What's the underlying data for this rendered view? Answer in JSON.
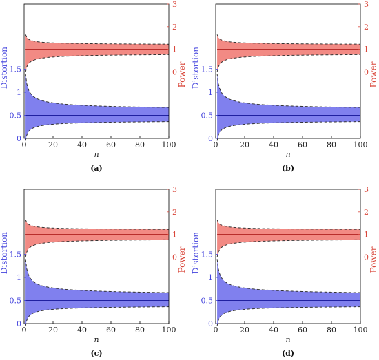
{
  "figure": {
    "colors": {
      "distortion": "#4444dd",
      "distortion_fill": "#8080ee",
      "power": "#d9473b",
      "power_fill": "#f28a84",
      "axis": "#000000",
      "dashed": "#333333"
    }
  },
  "chart_data": [
    {
      "type": "area",
      "panel_label": "(a)",
      "xlabel": "n",
      "ylabel_left": "Distortion",
      "ylabel_right": "Power",
      "x_ticks": [
        0,
        20,
        40,
        60,
        80,
        100
      ],
      "left_ticks": [
        "0",
        "0.5",
        "1",
        "1.5"
      ],
      "right_ticks": [
        "0",
        "1",
        "2",
        "3"
      ],
      "xlim": [
        0,
        100
      ],
      "distortion": {
        "mean": 0.5,
        "upper_start": 1.4,
        "lower_start": -0.05,
        "upper_end": 0.59,
        "lower_end": 0.41
      },
      "power": {
        "mean": 1.0,
        "upper_start": 1.65,
        "lower_start": 0.0,
        "upper_end": 1.18,
        "lower_end": 0.85
      }
    },
    {
      "type": "area",
      "panel_label": "(b)",
      "xlabel": "n",
      "ylabel_left": "Distortion",
      "ylabel_right": "Power",
      "x_ticks": [
        0,
        20,
        40,
        60,
        80,
        100
      ],
      "left_ticks": [
        "0",
        "0.5",
        "1",
        "1.5"
      ],
      "right_ticks": [
        "0",
        "1",
        "2",
        "3"
      ],
      "xlim": [
        0,
        100
      ],
      "distortion": {
        "mean": 0.5,
        "upper_start": 1.4,
        "lower_start": -0.05,
        "upper_end": 0.59,
        "lower_end": 0.41
      },
      "power": {
        "mean": 1.0,
        "upper_start": 1.65,
        "lower_start": 0.0,
        "upper_end": 1.18,
        "lower_end": 0.85
      }
    },
    {
      "type": "area",
      "panel_label": "(c)",
      "xlabel": "n",
      "ylabel_left": "Distortion",
      "ylabel_right": "Power",
      "x_ticks": [
        0,
        20,
        40,
        60,
        80,
        100
      ],
      "left_ticks": [
        "0",
        "0.5",
        "1",
        "1.5"
      ],
      "right_ticks": [
        "0",
        "1",
        "2",
        "3"
      ],
      "xlim": [
        0,
        100
      ],
      "distortion": {
        "mean": 0.5,
        "upper_start": 1.4,
        "lower_start": -0.05,
        "upper_end": 0.59,
        "lower_end": 0.41
      },
      "power": {
        "mean": 1.0,
        "upper_start": 1.65,
        "lower_start": 0.0,
        "upper_end": 1.18,
        "lower_end": 0.85
      }
    },
    {
      "type": "area",
      "panel_label": "(d)",
      "xlabel": "n",
      "ylabel_left": "Distortion",
      "ylabel_right": "Power",
      "x_ticks": [
        0,
        20,
        40,
        60,
        80,
        100
      ],
      "left_ticks": [
        "0",
        "0.5",
        "1",
        "1.5"
      ],
      "right_ticks": [
        "0",
        "1",
        "2",
        "3"
      ],
      "xlim": [
        0,
        100
      ],
      "distortion": {
        "mean": 0.5,
        "upper_start": 1.4,
        "lower_start": -0.05,
        "upper_end": 0.59,
        "lower_end": 0.41
      },
      "power": {
        "mean": 1.0,
        "upper_start": 1.65,
        "lower_start": 0.0,
        "upper_end": 1.18,
        "lower_end": 0.85
      }
    }
  ]
}
